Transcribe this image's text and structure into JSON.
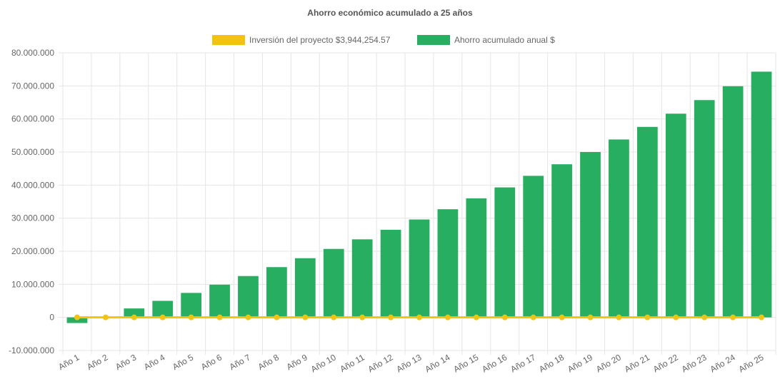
{
  "chart_data": {
    "type": "bar",
    "title": "Ahorro económico acumulado a 25 años",
    "categories": [
      "Año 1",
      "Año 2",
      "Año 3",
      "Año 4",
      "Año 5",
      "Año 6",
      "Año 7",
      "Año 8",
      "Año 9",
      "Año 10",
      "Año 11",
      "Año 12",
      "Año 13",
      "Año 14",
      "Año 15",
      "Año 16",
      "Año 17",
      "Año 18",
      "Año 19",
      "Año 20",
      "Año 21",
      "Año 22",
      "Año 23",
      "Año 24",
      "Año 25"
    ],
    "series": [
      {
        "name": "Inversión del proyecto $3,944,254.57",
        "type": "line",
        "color": "#f2c311",
        "values": [
          0,
          0,
          0,
          0,
          0,
          0,
          0,
          0,
          0,
          0,
          0,
          0,
          0,
          0,
          0,
          0,
          0,
          0,
          0,
          0,
          0,
          0,
          0,
          0,
          0
        ]
      },
      {
        "name": "Ahorro acumulado anual $",
        "type": "bar",
        "color": "#27ae60",
        "values": [
          -1700000,
          200000,
          2700000,
          5000000,
          7400000,
          9900000,
          12500000,
          15200000,
          17900000,
          20700000,
          23600000,
          26500000,
          29600000,
          32700000,
          36000000,
          39300000,
          42800000,
          46300000,
          50000000,
          53800000,
          57600000,
          61600000,
          65700000,
          69900000,
          74300000
        ]
      }
    ],
    "ylim": [
      -10000000,
      80000000
    ],
    "yticks": [
      80000000,
      70000000,
      60000000,
      50000000,
      40000000,
      30000000,
      20000000,
      10000000,
      0,
      -10000000
    ],
    "ytick_labels": [
      "80.000.000",
      "70.000.000",
      "60.000.000",
      "50.000.000",
      "40.000.000",
      "30.000.000",
      "20.000.000",
      "10.000.000",
      "0",
      "-10.000.000"
    ],
    "grid": true,
    "legend_position": "top"
  }
}
